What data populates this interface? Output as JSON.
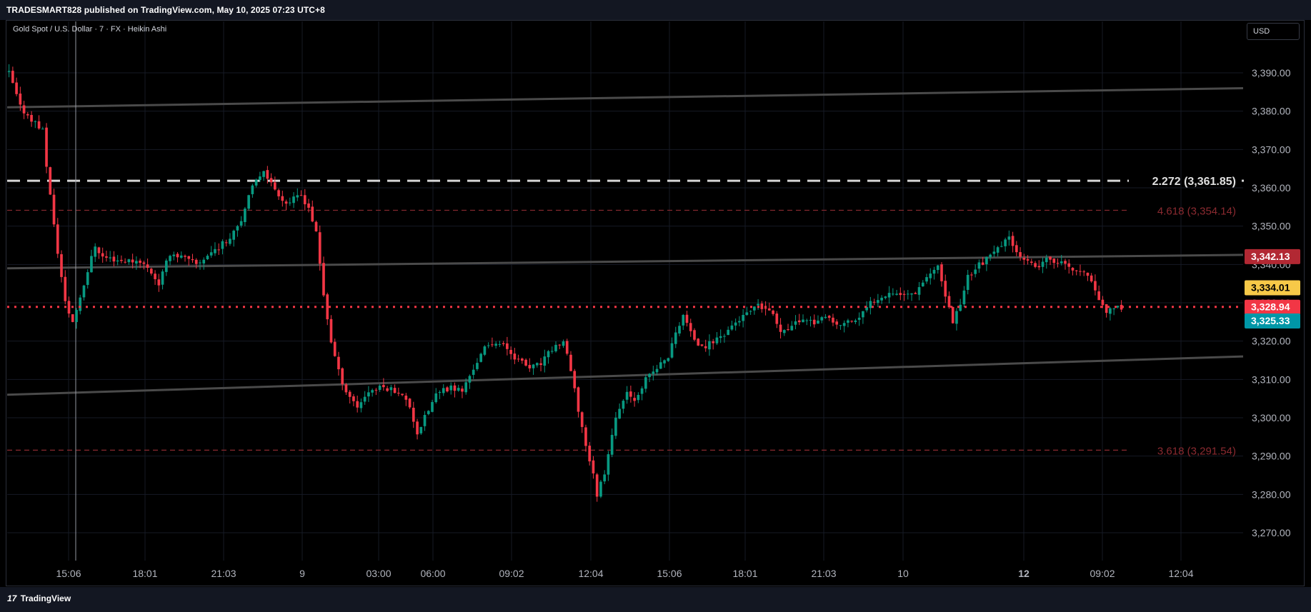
{
  "header": {
    "published_line": "TRADESMART828 published on TradingView.com, May 10, 2025 07:23 UTC+8"
  },
  "symbol": {
    "title": "Gold Spot / U.S. Dollar · 7 · FX · Heikin Ashi"
  },
  "currency_button": "USD",
  "footer": {
    "logo_mark": "17",
    "logo_text": "TradingView"
  },
  "colors": {
    "background": "#000000",
    "bull": "#089981",
    "bear": "#f23645",
    "grid": "#161a25",
    "axis_text": "#b2b5be",
    "channel": "#4a4a4a",
    "fib_white": "#d6d6d6",
    "fib_red": "#8b2a30",
    "current_price": "#f23645",
    "label_yellow": "#f7c948",
    "label_teal": "#0097a7",
    "label_channel": "#b22833"
  },
  "chart_data": {
    "type": "candlestick",
    "title": "",
    "xlabel": "",
    "ylabel": "",
    "ylim": [
      3262,
      3398
    ],
    "y_ticks": [
      "3,390.00",
      "3,380.00",
      "3,370.00",
      "3,360.00",
      "3,350.00",
      "3,340.00",
      "3,330.00",
      "3,320.00",
      "3,310.00",
      "3,300.00",
      "3,290.00",
      "3,280.00",
      "3,270.00"
    ],
    "y_tick_values": [
      3390,
      3380,
      3370,
      3360,
      3350,
      3340,
      3330,
      3320,
      3310,
      3300,
      3290,
      3280,
      3270
    ],
    "x_ticks": [
      {
        "label": "15:06",
        "bold": false
      },
      {
        "label": "18:01",
        "bold": false
      },
      {
        "label": "21:03",
        "bold": false
      },
      {
        "label": "9",
        "bold": false
      },
      {
        "label": "03:00",
        "bold": false
      },
      {
        "label": "06:00",
        "bold": false
      },
      {
        "label": "09:02",
        "bold": false
      },
      {
        "label": "12:04",
        "bold": false
      },
      {
        "label": "15:06",
        "bold": false
      },
      {
        "label": "18:01",
        "bold": false
      },
      {
        "label": "21:03",
        "bold": false
      },
      {
        "label": "10",
        "bold": false
      },
      {
        "label": "12",
        "bold": true
      },
      {
        "label": "09:02",
        "bold": false
      },
      {
        "label": "12:04",
        "bold": false
      }
    ],
    "trend_path": [
      [
        0,
        3390
      ],
      [
        3,
        3381
      ],
      [
        6,
        3378
      ],
      [
        9,
        3375
      ],
      [
        10,
        3366
      ],
      [
        12,
        3350
      ],
      [
        15,
        3330
      ],
      [
        17,
        3325
      ],
      [
        20,
        3335
      ],
      [
        23,
        3345
      ],
      [
        25,
        3342
      ],
      [
        30,
        3341
      ],
      [
        35,
        3341
      ],
      [
        38,
        3338
      ],
      [
        40,
        3335
      ],
      [
        43,
        3343
      ],
      [
        46,
        3342
      ],
      [
        50,
        3340
      ],
      [
        55,
        3344
      ],
      [
        58,
        3346
      ],
      [
        62,
        3352
      ],
      [
        65,
        3360
      ],
      [
        68,
        3365
      ],
      [
        70,
        3361
      ],
      [
        74,
        3356
      ],
      [
        78,
        3358
      ],
      [
        80,
        3355
      ],
      [
        82,
        3348
      ],
      [
        84,
        3332
      ],
      [
        86,
        3320
      ],
      [
        88,
        3312
      ],
      [
        90,
        3307
      ],
      [
        93,
        3303
      ],
      [
        96,
        3307
      ],
      [
        100,
        3308
      ],
      [
        104,
        3307
      ],
      [
        107,
        3303
      ],
      [
        109,
        3296
      ],
      [
        111,
        3300
      ],
      [
        114,
        3306
      ],
      [
        118,
        3308
      ],
      [
        121,
        3307
      ],
      [
        124,
        3313
      ],
      [
        127,
        3318
      ],
      [
        130,
        3320
      ],
      [
        133,
        3318
      ],
      [
        136,
        3315
      ],
      [
        139,
        3313
      ],
      [
        142,
        3314
      ],
      [
        145,
        3318
      ],
      [
        148,
        3320
      ],
      [
        150,
        3312
      ],
      [
        152,
        3302
      ],
      [
        154,
        3293
      ],
      [
        156,
        3285
      ],
      [
        157,
        3280
      ],
      [
        159,
        3286
      ],
      [
        161,
        3296
      ],
      [
        163,
        3303
      ],
      [
        165,
        3306
      ],
      [
        167,
        3305
      ],
      [
        170,
        3310
      ],
      [
        173,
        3313
      ],
      [
        176,
        3316
      ],
      [
        178,
        3322
      ],
      [
        180,
        3327
      ],
      [
        182,
        3322
      ],
      [
        185,
        3318
      ],
      [
        188,
        3320
      ],
      [
        191,
        3322
      ],
      [
        194,
        3325
      ],
      [
        197,
        3327
      ],
      [
        200,
        3329
      ],
      [
        203,
        3328
      ],
      [
        206,
        3323
      ],
      [
        209,
        3324
      ],
      [
        212,
        3326
      ],
      [
        215,
        3325
      ],
      [
        218,
        3326
      ],
      [
        221,
        3324
      ],
      [
        224,
        3325
      ],
      [
        227,
        3326
      ],
      [
        230,
        3330
      ],
      [
        233,
        3332
      ],
      [
        236,
        3333
      ],
      [
        239,
        3332
      ],
      [
        242,
        3333
      ],
      [
        245,
        3337
      ],
      [
        248,
        3339
      ],
      [
        250,
        3332
      ],
      [
        252,
        3325
      ],
      [
        254,
        3330
      ],
      [
        256,
        3337
      ],
      [
        259,
        3340
      ],
      [
        262,
        3342
      ],
      [
        265,
        3345
      ],
      [
        267,
        3347
      ],
      [
        269,
        3344
      ],
      [
        271,
        3341
      ],
      [
        274,
        3339
      ],
      [
        277,
        3341
      ],
      [
        280,
        3341
      ],
      [
        283,
        3339
      ],
      [
        286,
        3338
      ],
      [
        289,
        3336
      ],
      [
        291,
        3331
      ],
      [
        293,
        3328
      ],
      [
        295,
        3328
      ],
      [
        297,
        3329
      ]
    ],
    "channel_lines": [
      {
        "name": "upper",
        "start": [
          0,
          3381
        ],
        "end": [
          328,
          3386
        ]
      },
      {
        "name": "middle",
        "start": [
          0,
          3339
        ],
        "end": [
          328,
          3342.5
        ]
      },
      {
        "name": "lower",
        "start": [
          0,
          3306
        ],
        "end": [
          328,
          3316
        ]
      }
    ],
    "fib_levels": [
      {
        "label": "2.272 (3,361.85)",
        "value": 3361.85,
        "style": "dashed-white"
      },
      {
        "label": "4.618 (3,354.14)",
        "value": 3354.14,
        "style": "dashed-red"
      },
      {
        "label": "3.618 (3,291.54)",
        "value": 3291.54,
        "style": "dashed-red"
      }
    ],
    "current_price": 3328.94,
    "price_labels": [
      {
        "text": "3,342.13",
        "value": 3342.13,
        "color": "label_channel"
      },
      {
        "text": "3,334.01",
        "value": 3334.01,
        "color": "label_yellow"
      },
      {
        "text": "3,328.94",
        "value": 3328.94,
        "color": "current_price"
      },
      {
        "text": "3,325.33",
        "value": 3325.33,
        "color": "label_teal"
      }
    ]
  }
}
